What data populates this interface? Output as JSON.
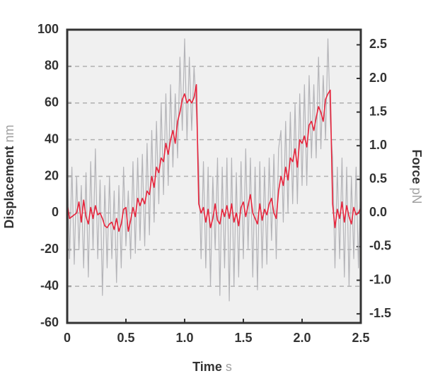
{
  "chart_data": {
    "type": "line",
    "xlabel": {
      "text": "Time",
      "unit": "s"
    },
    "ylabel": {
      "text": "Displacement",
      "unit": "nm"
    },
    "y2label": {
      "text": "Force",
      "unit": "pN"
    },
    "xlim": [
      0,
      2.5
    ],
    "xticks": [
      0,
      0.5,
      {
        "value": 1,
        "label": "1.0"
      },
      1.5,
      {
        "value": 2,
        "label": "2.0"
      },
      2.5
    ],
    "ylim": [
      -60,
      100
    ],
    "yticks": [
      -60,
      -40,
      -20,
      0,
      20,
      40,
      60,
      80,
      100
    ],
    "y2lim": [
      -1.635,
      2.725
    ],
    "y2ticks": [
      -1.5,
      {
        "value": -1,
        "label": "-1.0"
      },
      -0.5,
      {
        "value": 0,
        "label": "0.0"
      },
      0.5,
      {
        "value": 1,
        "label": "1.0"
      },
      1.5,
      {
        "value": 2,
        "label": "2.0"
      },
      2.5
    ],
    "grid": true,
    "x": [
      0,
      0.02,
      0.04,
      0.06,
      0.08,
      0.1,
      0.12,
      0.14,
      0.16,
      0.18,
      0.2,
      0.22,
      0.24,
      0.26,
      0.28,
      0.3,
      0.32,
      0.34,
      0.36,
      0.38,
      0.4,
      0.42,
      0.44,
      0.46,
      0.48,
      0.5,
      0.52,
      0.54,
      0.56,
      0.58,
      0.6,
      0.62,
      0.64,
      0.66,
      0.68,
      0.7,
      0.72,
      0.74,
      0.76,
      0.78,
      0.8,
      0.82,
      0.84,
      0.86,
      0.88,
      0.9,
      0.92,
      0.94,
      0.96,
      0.98,
      1,
      1.02,
      1.04,
      1.06,
      1.08,
      1.1,
      1.12,
      1.14,
      1.16,
      1.18,
      1.2,
      1.22,
      1.24,
      1.26,
      1.28,
      1.3,
      1.32,
      1.34,
      1.36,
      1.38,
      1.4,
      1.42,
      1.44,
      1.46,
      1.48,
      1.5,
      1.52,
      1.54,
      1.56,
      1.58,
      1.6,
      1.62,
      1.64,
      1.66,
      1.68,
      1.7,
      1.72,
      1.74,
      1.76,
      1.78,
      1.8,
      1.82,
      1.84,
      1.86,
      1.88,
      1.9,
      1.92,
      1.94,
      1.96,
      1.98,
      2,
      2.02,
      2.04,
      2.06,
      2.08,
      2.1,
      2.12,
      2.14,
      2.16,
      2.18,
      2.2,
      2.22,
      2.24,
      2.26,
      2.28,
      2.3,
      2.32,
      2.34,
      2.36,
      2.38,
      2.4,
      2.42,
      2.44,
      2.46,
      2.48,
      2.5
    ],
    "series": [
      {
        "color": "#b4b4b8",
        "values": [
          30,
          -25,
          25,
          -28,
          20,
          -20,
          15,
          -30,
          22,
          -35,
          28,
          -20,
          35,
          -25,
          18,
          -45,
          15,
          -30,
          20,
          -25,
          12,
          -38,
          15,
          -30,
          25,
          -18,
          12,
          -25,
          28,
          -22,
          30,
          -15,
          32,
          -18,
          38,
          -12,
          45,
          -5,
          50,
          5,
          60,
          10,
          65,
          15,
          70,
          25,
          65,
          30,
          85,
          45,
          95,
          40,
          85,
          45,
          80,
          55,
          25,
          -25,
          28,
          -30,
          25,
          -40,
          20,
          -20,
          30,
          -45,
          25,
          -30,
          30,
          -48,
          30,
          -40,
          22,
          -35,
          28,
          -25,
          35,
          -20,
          30,
          -35,
          25,
          -42,
          28,
          -30,
          25,
          -28,
          30,
          -15,
          32,
          -25,
          35,
          45,
          -5,
          50,
          0,
          55,
          5,
          60,
          5,
          65,
          15,
          70,
          15,
          75,
          30,
          70,
          30,
          85,
          35,
          75,
          40,
          95,
          50,
          30,
          -30,
          25,
          -25,
          30,
          -35,
          25,
          -40,
          20,
          -25,
          25,
          -30,
          20
        ]
      },
      {
        "color": "#e8243c",
        "values": [
          5,
          -3,
          -2,
          -1,
          0,
          6,
          -5,
          7,
          -2,
          -6,
          3,
          -3,
          4,
          -1,
          0,
          -3,
          -7,
          -8,
          -6,
          -5,
          -9,
          -3,
          -10,
          -6,
          2,
          3,
          -10,
          -4,
          3,
          -2,
          8,
          4,
          8,
          5,
          12,
          10,
          20,
          14,
          25,
          22,
          30,
          28,
          38,
          32,
          40,
          45,
          38,
          50,
          55,
          62,
          65,
          60,
          62,
          60,
          63,
          70,
          5,
          0,
          3,
          -5,
          2,
          -8,
          -3,
          5,
          -4,
          -6,
          2,
          -2,
          4,
          -3,
          5,
          -5,
          0,
          -7,
          3,
          6,
          -2,
          4,
          10,
          0,
          -3,
          -6,
          5,
          -4,
          2,
          -1,
          5,
          8,
          0,
          -3,
          12,
          20,
          15,
          25,
          18,
          30,
          28,
          35,
          25,
          40,
          38,
          42,
          36,
          48,
          50,
          45,
          52,
          58,
          55,
          50,
          62,
          65,
          67,
          5,
          -8,
          2,
          -3,
          6,
          -5,
          4,
          -2,
          -6,
          3,
          -1,
          0,
          3
        ]
      }
    ]
  }
}
